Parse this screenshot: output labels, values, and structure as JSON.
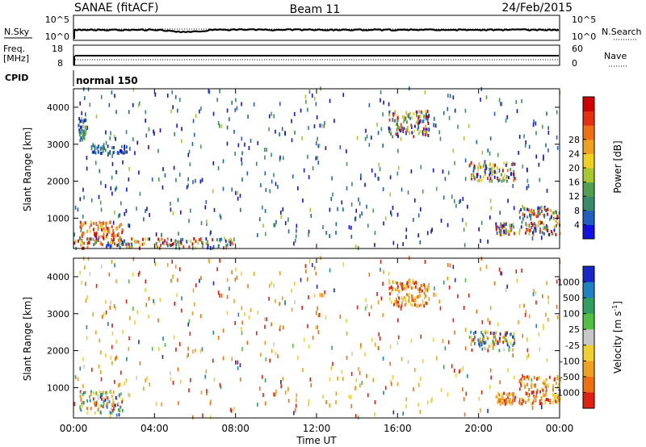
{
  "header": {
    "title": "SANAE (fitACF)",
    "beam": "Beam 11",
    "date": "24/Feb/2015"
  },
  "noise_panel": {
    "left_label": "N.Sky",
    "right_label": "N.Search",
    "left_ticks": [
      "10^5",
      "10^0"
    ],
    "right_ticks": [
      "10^5",
      "10^0"
    ]
  },
  "freq_panel": {
    "left_label_line1": "Freq.",
    "left_label_line2": "[MHz]",
    "right_label": "Nave",
    "left_ticks": [
      "18",
      "8"
    ],
    "right_ticks": [
      "60",
      "0"
    ]
  },
  "cpid": {
    "label": "CPID",
    "mode": "normal 150"
  },
  "chart_data": [
    {
      "type": "heatmap",
      "name": "power",
      "xlabel": "",
      "ylabel": "Slant Range [km]",
      "x_ticks": [
        "00:00",
        "04:00",
        "08:00",
        "12:00",
        "16:00",
        "20:00",
        "00:00"
      ],
      "y_ticks": [
        1000,
        2000,
        3000,
        4000
      ],
      "ylim": [
        180,
        4500
      ],
      "xlim_hours": [
        0,
        24
      ],
      "colorbar": {
        "label": "Power [dB]",
        "ticks": [
          "4",
          "8",
          "12",
          "16",
          "20",
          "24",
          "28"
        ],
        "colors": [
          "#1010e0",
          "#2060c0",
          "#3a8a6a",
          "#50a050",
          "#a8c830",
          "#f0d020",
          "#f0a020",
          "#f07010",
          "#e83010",
          "#d00000"
        ]
      },
      "regions": [
        {
          "t": [
            0.2,
            2.4
          ],
          "r": [
            250,
            900
          ],
          "value": "high"
        },
        {
          "t": [
            0.2,
            0.6
          ],
          "r": [
            3100,
            3700
          ],
          "value": "mid"
        },
        {
          "t": [
            0.8,
            2.6
          ],
          "r": [
            2750,
            2950
          ],
          "value": "low"
        },
        {
          "t": [
            0.0,
            8.0
          ],
          "r": [
            180,
            450
          ],
          "value": "mixed"
        },
        {
          "t": [
            20.8,
            21.8
          ],
          "r": [
            550,
            850
          ],
          "value": "mixed"
        },
        {
          "t": [
            22.0,
            24.0
          ],
          "r": [
            550,
            1300
          ],
          "value": "mixed"
        },
        {
          "t": [
            19.5,
            21.8
          ],
          "r": [
            2000,
            2500
          ],
          "value": "mixed"
        },
        {
          "t": [
            15.5,
            17.5
          ],
          "r": [
            3200,
            3900
          ],
          "value": "mixed"
        }
      ]
    },
    {
      "type": "heatmap",
      "name": "velocity",
      "xlabel": "Time UT",
      "ylabel": "Slant Range [km]",
      "x_ticks": [
        "00:00",
        "04:00",
        "08:00",
        "12:00",
        "16:00",
        "20:00",
        "00:00"
      ],
      "y_ticks": [
        1000,
        2000,
        3000,
        4000
      ],
      "ylim": [
        180,
        4500
      ],
      "xlim_hours": [
        0,
        24
      ],
      "colorbar": {
        "label": "Velocity [m s^-1]",
        "ticks": [
          "1000",
          "500",
          "100",
          "25",
          "-25",
          "-100",
          "-500",
          "-1000"
        ],
        "colors": [
          "#1828c8",
          "#2080c0",
          "#30a060",
          "#50c040",
          "#c8c8c8",
          "#f0d030",
          "#f0a020",
          "#f07010",
          "#e02010"
        ]
      },
      "regions": [
        {
          "t": [
            0.2,
            2.4
          ],
          "r": [
            250,
            900
          ],
          "value": "mixed"
        },
        {
          "t": [
            20.8,
            21.8
          ],
          "r": [
            550,
            850
          ],
          "value": "negative"
        },
        {
          "t": [
            22.0,
            24.0
          ],
          "r": [
            550,
            1300
          ],
          "value": "negative"
        },
        {
          "t": [
            19.5,
            21.8
          ],
          "r": [
            2000,
            2500
          ],
          "value": "mixed"
        },
        {
          "t": [
            15.5,
            17.5
          ],
          "r": [
            3200,
            3900
          ],
          "value": "negative"
        }
      ]
    }
  ]
}
